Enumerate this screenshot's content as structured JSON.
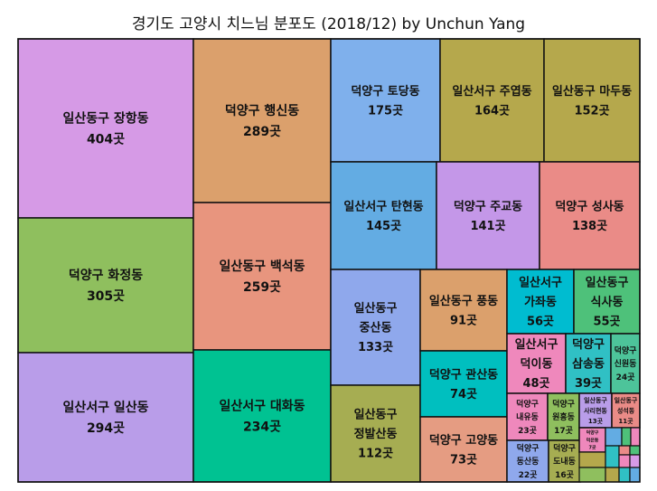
{
  "chart_data": {
    "type": "treemap",
    "title": "경기도 고양시 치느님 분포도 (2018/12) by Unchun Yang",
    "unit": "곳",
    "cells": [
      {
        "name": "일산동구 장항동",
        "value": 404,
        "value_label": "404곳",
        "color": "#d69ae6"
      },
      {
        "name": "덕양구 화정동",
        "value": 305,
        "value_label": "305곳",
        "color": "#8fbf5e"
      },
      {
        "name": "일산서구 일산동",
        "value": 294,
        "value_label": "294곳",
        "color": "#b99de9"
      },
      {
        "name": "덕양구 행신동",
        "value": 289,
        "value_label": "289곳",
        "color": "#dba06c"
      },
      {
        "name": "일산동구 백석동",
        "value": 259,
        "value_label": "259곳",
        "color": "#e8957e"
      },
      {
        "name": "일산서구 대화동",
        "value": 234,
        "value_label": "234곳",
        "color": "#00c292"
      },
      {
        "name": "덕양구 토당동",
        "value": 175,
        "value_label": "175곳",
        "color": "#7fb0ec"
      },
      {
        "name": "일산서구 주엽동",
        "value": 164,
        "value_label": "164곳",
        "color": "#b5a84c"
      },
      {
        "name": "일산동구 마두동",
        "value": 152,
        "value_label": "152곳",
        "color": "#b5a84c"
      },
      {
        "name": "일산서구 탄현동",
        "value": 145,
        "value_label": "145곳",
        "color": "#63ace3"
      },
      {
        "name": "덕양구 주교동",
        "value": 141,
        "value_label": "141곳",
        "color": "#c497e8"
      },
      {
        "name": "덕양구 성사동",
        "value": 138,
        "value_label": "138곳",
        "color": "#ea8b87"
      },
      {
        "name": "일산동구 중산동",
        "value": 133,
        "value_label": "133곳",
        "color": "#8fa8ec"
      },
      {
        "name": "일산동구 정발산동",
        "value": 112,
        "value_label": "112곳",
        "color": "#a6ad52"
      },
      {
        "name": "일산동구 풍동",
        "value": 91,
        "value_label": "91곳",
        "color": "#dba06c"
      },
      {
        "name": "덕양구 관산동",
        "value": 74,
        "value_label": "74곳",
        "color": "#00bfbf"
      },
      {
        "name": "덕양구 고양동",
        "value": 73,
        "value_label": "73곳",
        "color": "#e59c82"
      },
      {
        "name": "일산서구 가좌동",
        "value": 56,
        "value_label": "56곳",
        "color": "#00bcd0"
      },
      {
        "name": "일산동구 식사동",
        "value": 55,
        "value_label": "55곳",
        "color": "#4ec17a"
      },
      {
        "name": "일산서구 덕이동",
        "value": 48,
        "value_label": "48곳",
        "color": "#ef88bc"
      },
      {
        "name": "덕양구 삼송동",
        "value": 39,
        "value_label": "39곳",
        "color": "#30c0c4"
      },
      {
        "name": "덕양구 신원동",
        "value": 24,
        "value_label": "24곳",
        "color": "#4dc49a"
      },
      {
        "name": "덕양구 내유동",
        "value": 23,
        "value_label": "23곳",
        "color": "#ef88bc"
      },
      {
        "name": "덕양구 원흥동",
        "value": 17,
        "value_label": "17곳",
        "color": "#8fbf5e"
      },
      {
        "name": "일산동구 사리현동",
        "value": 13,
        "value_label": "13곳",
        "color": "#b99de9"
      },
      {
        "name": "일산동구 성석동",
        "value": 11,
        "value_label": "11곳",
        "color": "#ea8b87"
      },
      {
        "name": "덕양구 동산동",
        "value": 22,
        "value_label": "22곳",
        "color": "#8fa8ec"
      },
      {
        "name": "덕양구 도내동",
        "value": 16,
        "value_label": "16곳",
        "color": "#a6ad52"
      },
      {
        "name": "덕양구 덕은동",
        "value": 7,
        "value_label": "7곳",
        "color": "#ef88bc"
      }
    ]
  }
}
